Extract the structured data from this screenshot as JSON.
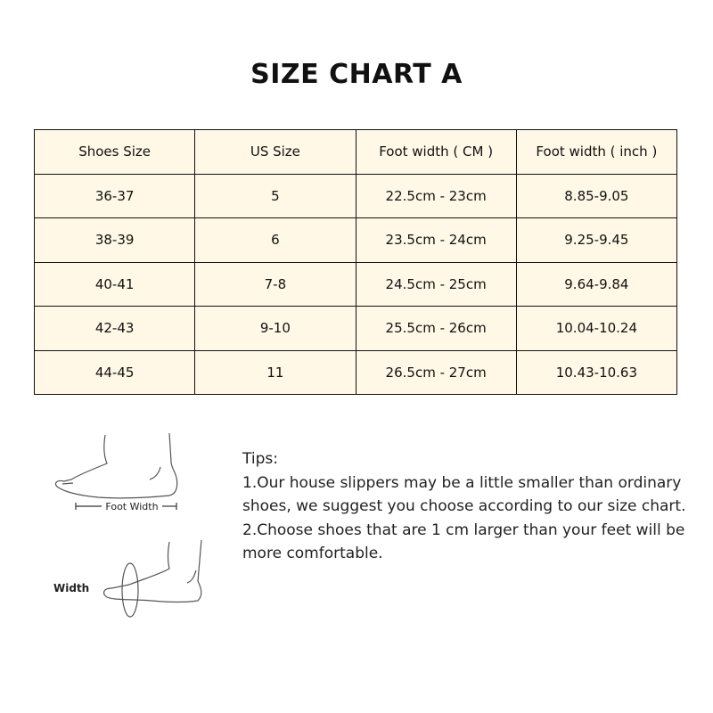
{
  "title": "SIZE CHART A",
  "table": {
    "headers": [
      "Shoes Size",
      "US Size",
      "Foot width ( CM )",
      "Foot width ( inch )"
    ],
    "rows": [
      [
        "36-37",
        "5",
        "22.5cm - 23cm",
        "8.85-9.05"
      ],
      [
        "38-39",
        "6",
        "23.5cm - 24cm",
        "9.25-9.45"
      ],
      [
        "40-41",
        "7-8",
        "24.5cm - 25cm",
        "9.64-9.84"
      ],
      [
        "42-43",
        "9-10",
        "25.5cm - 26cm",
        "10.04-10.24"
      ],
      [
        "44-45",
        "11",
        "26.5cm - 27cm",
        "10.43-10.63"
      ]
    ],
    "cell_color": "#fff8e6"
  },
  "figure": {
    "top_label": "Foot Width",
    "bottom_label": "Width"
  },
  "tips": {
    "heading": "Tips:",
    "items": [
      "1.Our house slippers may be a little smaller than ordinary shoes, we suggest you choose according to our size chart.",
      "2.Choose shoes that are 1 cm larger than your feet will be more comfortable."
    ]
  }
}
